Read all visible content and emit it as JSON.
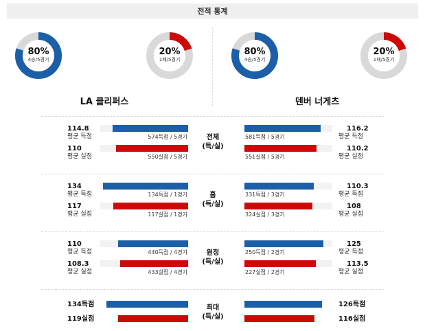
{
  "header": {
    "title": "전적 통계"
  },
  "colors": {
    "blue": "#1c5fa9",
    "red": "#cc0a0a",
    "track": "#f2f2f2",
    "ring": "#d9d9d9"
  },
  "teams": {
    "left": {
      "name": "LA 클리퍼스",
      "win": {
        "pct": "80%",
        "record": "4승/5경기",
        "fraction": 0.8
      },
      "loss": {
        "pct": "20%",
        "record": "1패/5경기",
        "fraction": 0.2
      }
    },
    "right": {
      "name": "덴버 너게츠",
      "win": {
        "pct": "80%",
        "record": "4승/5경기",
        "fraction": 0.8
      },
      "loss": {
        "pct": "20%",
        "record": "1패/5경기",
        "fraction": 0.2
      }
    }
  },
  "sections": [
    {
      "cat1": "전체",
      "cat2": "(득/실)",
      "left": {
        "score": {
          "value": "114.8",
          "label": "평균 득점",
          "bar_text": "574득점 / 5경기",
          "fraction": 0.86
        },
        "concede": {
          "value": "110",
          "label": "평균 실점",
          "bar_text": "550실점 / 5경기",
          "fraction": 0.82
        }
      },
      "right": {
        "score": {
          "value": "116.2",
          "label": "평균 득점",
          "bar_text": "581득점 / 5경기",
          "fraction": 0.87
        },
        "concede": {
          "value": "110.2",
          "label": "평균 실점",
          "bar_text": "551실점 / 5경기",
          "fraction": 0.82
        }
      }
    },
    {
      "cat1": "홈",
      "cat2": "(득/실)",
      "left": {
        "score": {
          "value": "134",
          "label": "평균 득점",
          "bar_text": "134득점 / 1경기",
          "fraction": 0.97
        },
        "concede": {
          "value": "117",
          "label": "평균 실점",
          "bar_text": "117실점 / 1경기",
          "fraction": 0.85
        }
      },
      "right": {
        "score": {
          "value": "110.3",
          "label": "평균 득점",
          "bar_text": "331득점 / 3경기",
          "fraction": 0.79
        },
        "concede": {
          "value": "108",
          "label": "평균 실점",
          "bar_text": "324실점 / 3경기",
          "fraction": 0.77
        }
      }
    },
    {
      "cat1": "원정",
      "cat2": "(득/실)",
      "left": {
        "score": {
          "value": "110",
          "label": "평균 득점",
          "bar_text": "440득점 / 4경기",
          "fraction": 0.8
        },
        "concede": {
          "value": "108.3",
          "label": "평균 실점",
          "bar_text": "433실점 / 4경기",
          "fraction": 0.77
        }
      },
      "right": {
        "score": {
          "value": "125",
          "label": "평균 득점",
          "bar_text": "250득점 / 2경기",
          "fraction": 0.9
        },
        "concede": {
          "value": "113.5",
          "label": "평균 실점",
          "bar_text": "227실점 / 2경기",
          "fraction": 0.81
        }
      }
    }
  ],
  "max": {
    "cat1": "최대",
    "cat2": "(득/실)",
    "left": {
      "score": "134득점",
      "concede": "119실점",
      "score_fraction": 0.93,
      "concede_fraction": 0.8
    },
    "right": {
      "score": "126득점",
      "concede": "116실점",
      "score_fraction": 0.88,
      "concede_fraction": 0.8
    }
  }
}
